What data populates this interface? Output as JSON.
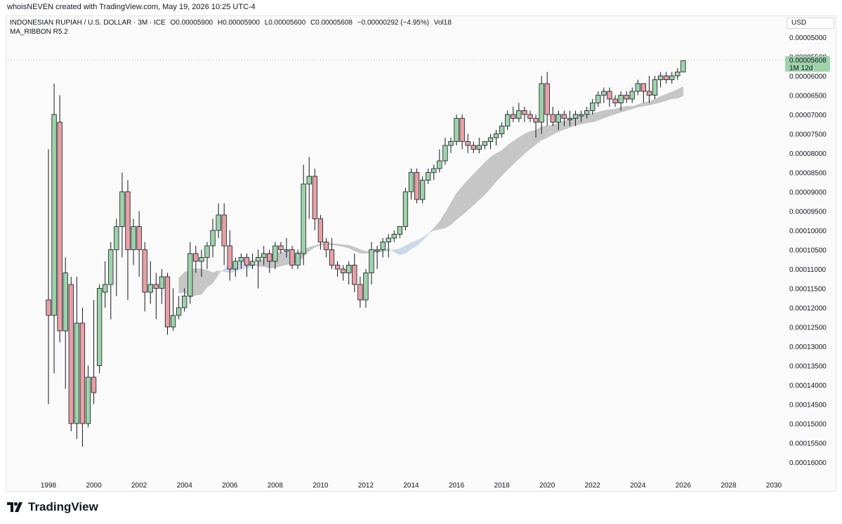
{
  "header": {
    "credit": "whoisNEVEN created with TradingView.com, May 19, 2026 10:25 UTC-4"
  },
  "legend": {
    "symbol": "INDONESIAN RUPIAH / U.S. DOLLAR · 3M · ICE",
    "open": "O0.00005900",
    "high": "H0.00005900",
    "low": "L0.00005600",
    "close": "C0.00005608",
    "change": "−0.00000292 (−4.95%)",
    "volume": "Vol18",
    "indicator": "MA_RIBBON R5.2"
  },
  "currency_badge": "USD",
  "price_tag": {
    "price": "0.00005608",
    "countdown": "1M 12d",
    "color": "#9ed3a9"
  },
  "brand": {
    "name": "TradingView"
  },
  "colors": {
    "up": "#9ed3a9",
    "down": "#e8a0a4",
    "ribbon": "#c6c6c6",
    "ribbon_light": "#c9d9e8",
    "text": "#131722"
  },
  "chart_data": {
    "type": "candlestick",
    "title": "INDONESIAN RUPIAH / U.S. DOLLAR",
    "xlabel": "",
    "ylabel": "",
    "y_scale": "inverted",
    "ylim": [
      0.000162,
      4.8e-05
    ],
    "xlim": [
      1998.0,
      2030.3
    ],
    "x_ticks": [
      "1998",
      "2000",
      "2002",
      "2004",
      "2006",
      "2008",
      "2010",
      "2012",
      "2014",
      "2016",
      "2018",
      "2020",
      "2022",
      "2024",
      "2026",
      "2028",
      "2030"
    ],
    "y_ticks": [
      "0.00005000",
      "0.00005500",
      "0.00006000",
      "0.00006500",
      "0.00007000",
      "0.00007500",
      "0.00008000",
      "0.00008500",
      "0.00009000",
      "0.00009500",
      "0.00010000",
      "0.00010500",
      "0.00011000",
      "0.00011500",
      "0.00012000",
      "0.00012500",
      "0.00013000",
      "0.00013500",
      "0.00014000",
      "0.00014500",
      "0.00015000",
      "0.00015500",
      "0.00016000"
    ],
    "last_price": 5.608e-05,
    "candles_ohlc": [
      [
        0.000118,
        7.9e-05,
        0.000145,
        0.000122
      ],
      [
        0.000122,
        6.2e-05,
        0.000137,
        7e-05
      ],
      [
        7.2e-05,
        6.5e-05,
        0.000129,
        0.000126
      ],
      [
        0.000126,
        0.000107,
        0.000141,
        0.000111
      ],
      [
        0.000114,
        0.000112,
        0.000152,
        0.00015
      ],
      [
        0.00015,
        0.000112,
        0.000154,
        0.000124
      ],
      [
        0.000124,
        0.00012,
        0.000156,
        0.00015
      ],
      [
        0.00015,
        0.000135,
        0.000151,
        0.000138
      ],
      [
        0.000138,
        0.000118,
        0.000145,
        0.000142
      ],
      [
        0.000135,
        0.000114,
        0.000137,
        0.000115
      ],
      [
        0.000116,
        0.000108,
        0.00012,
        0.000114
      ],
      [
        0.000114,
        0.000103,
        0.000123,
        0.000105
      ],
      [
        0.000105,
        9.7e-05,
        0.000117,
        9.9e-05
      ],
      [
        9.9e-05,
        8.5e-05,
        0.000107,
        9e-05
      ],
      [
        9e-05,
        8.7e-05,
        0.000118,
        0.000105
      ],
      [
        0.000105,
        9.7e-05,
        0.000109,
        9.9e-05
      ],
      [
        9.9e-05,
        9.5e-05,
        0.000112,
        0.000105
      ],
      [
        0.000105,
        0.000103,
        0.000121,
        0.000116
      ],
      [
        0.000116,
        0.000108,
        0.000119,
        0.000114
      ],
      [
        0.000114,
        0.000111,
        0.000123,
        0.000115
      ],
      [
        0.000115,
        0.00011,
        0.000119,
        0.000112
      ],
      [
        0.000112,
        0.000111,
        0.000127,
        0.000125
      ],
      [
        0.000125,
        0.000115,
        0.000126,
        0.000122
      ],
      [
        0.000122,
        0.000117,
        0.000123,
        0.00012
      ],
      [
        0.00012,
        0.000115,
        0.000121,
        0.000117
      ],
      [
        0.000117,
        0.000103,
        0.000119,
        0.000106
      ],
      [
        0.000106,
        0.000104,
        0.000111,
        0.000108
      ],
      [
        0.000108,
        0.000105,
        0.000112,
        0.000107
      ],
      [
        0.000107,
        0.000103,
        0.00011,
        0.000104
      ],
      [
        0.000104,
        9.7e-05,
        0.000107,
        0.0001
      ],
      [
        0.0001,
        9.3e-05,
        0.000102,
        9.6e-05
      ],
      [
        9.6e-05,
        9.3e-05,
        0.000109,
        0.000104
      ],
      [
        0.000104,
        0.0001,
        0.000113,
        0.00011
      ],
      [
        0.00011,
        0.000107,
        0.000112,
        0.000108
      ],
      [
        0.000108,
        0.000106,
        0.00011,
        0.000107
      ],
      [
        0.000107,
        0.000106,
        0.000112,
        0.000109
      ],
      [
        0.000109,
        0.000106,
        0.00011,
        0.000108
      ],
      [
        0.000108,
        0.000105,
        0.000115,
        0.000107
      ],
      [
        0.000107,
        0.000104,
        0.000109,
        0.000106
      ],
      [
        0.000106,
        0.000105,
        0.000111,
        0.000108
      ],
      [
        0.000108,
        0.000103,
        0.00011,
        0.000104
      ],
      [
        0.000104,
        0.000103,
        0.000106,
        0.000105
      ],
      [
        0.000105,
        0.000102,
        0.000107,
        0.000105
      ],
      [
        0.000105,
        0.000104,
        0.00011,
        0.000109
      ],
      [
        0.000109,
        0.000105,
        0.00011,
        0.000106
      ],
      [
        0.000106,
        8.3e-05,
        0.000109,
        8.8e-05
      ],
      [
        8.8e-05,
        8.1e-05,
        9.7e-05,
        8.6e-05
      ],
      [
        8.6e-05,
        8.4e-05,
        0.0001,
        9.7e-05
      ],
      [
        9.7e-05,
        9.6e-05,
        0.000105,
        0.000103
      ],
      [
        0.000103,
        0.000102,
        0.000107,
        0.000105
      ],
      [
        0.000105,
        0.000102,
        0.00011,
        0.000109
      ],
      [
        0.000109,
        0.000108,
        0.000112,
        0.00011
      ],
      [
        0.00011,
        0.000109,
        0.000113,
        0.000111
      ],
      [
        0.000111,
        0.000108,
        0.000114,
        0.000109
      ],
      [
        0.000109,
        0.000106,
        0.000116,
        0.000114
      ],
      [
        0.000114,
        0.000112,
        0.00012,
        0.000118
      ],
      [
        0.000118,
        0.00011,
        0.00012,
        0.000111
      ],
      [
        0.000111,
        0.000103,
        0.000114,
        0.000105
      ],
      [
        0.000105,
        0.000104,
        0.00011,
        0.000105
      ],
      [
        0.000105,
        0.000102,
        0.000107,
        0.000103
      ],
      [
        0.000103,
        0.000101,
        0.000107,
        0.000102
      ],
      [
        0.000102,
        0.0001,
        0.000103,
        0.000101
      ],
      [
        0.000101,
        9.9e-05,
        0.000102,
        9.9e-05
      ],
      [
        9.9e-05,
        8.9e-05,
        0.0001,
        9e-05
      ],
      [
        9e-05,
        8.4e-05,
        9.2e-05,
        8.5e-05
      ],
      [
        8.5e-05,
        8.4e-05,
        9.3e-05,
        9.2e-05
      ],
      [
        9.2e-05,
        8.6e-05,
        9.3e-05,
        8.7e-05
      ],
      [
        8.7e-05,
        8.4e-05,
        8.8e-05,
        8.5e-05
      ],
      [
        8.5e-05,
        8.3e-05,
        8.7e-05,
        8.4e-05
      ],
      [
        8.4e-05,
        7.9e-05,
        8.5e-05,
        8.2e-05
      ],
      [
        8.2e-05,
        7.6e-05,
        8.3e-05,
        7.8e-05
      ],
      [
        7.8e-05,
        7.6e-05,
        8e-05,
        7.7e-05
      ],
      [
        7.7e-05,
        7e-05,
        7.8e-05,
        7.1e-05
      ],
      [
        7.1e-05,
        7e-05,
        7.9e-05,
        7.7e-05
      ],
      [
        7.7e-05,
        7.5e-05,
        8e-05,
        7.8e-05
      ],
      [
        7.8e-05,
        7.7e-05,
        8e-05,
        7.9e-05
      ],
      [
        7.9e-05,
        7.6e-05,
        8e-05,
        7.8e-05
      ],
      [
        7.8e-05,
        7.7e-05,
        7.9e-05,
        7.7e-05
      ],
      [
        7.7e-05,
        7.5e-05,
        7.9e-05,
        7.6e-05
      ],
      [
        7.6e-05,
        7.4e-05,
        7.8e-05,
        7.5e-05
      ],
      [
        7.5e-05,
        7.2e-05,
        7.6e-05,
        7.3e-05
      ],
      [
        7.3e-05,
        6.9e-05,
        7.4e-05,
        7e-05
      ],
      [
        7e-05,
        6.8e-05,
        7.2e-05,
        7.1e-05
      ],
      [
        7.1e-05,
        6.7e-05,
        7.2e-05,
        6.9e-05
      ],
      [
        6.9e-05,
        6.8e-05,
        7.2e-05,
        7e-05
      ],
      [
        7e-05,
        6.9e-05,
        7.2e-05,
        7.1e-05
      ],
      [
        7.1e-05,
        7e-05,
        7.6e-05,
        7.2e-05
      ],
      [
        7.2e-05,
        6e-05,
        7.5e-05,
        6.2e-05
      ],
      [
        6.2e-05,
        5.9e-05,
        7.3e-05,
        7e-05
      ],
      [
        7e-05,
        6.8e-05,
        7.3e-05,
        7.2e-05
      ],
      [
        7.2e-05,
        6.9e-05,
        7.4e-05,
        7e-05
      ],
      [
        7e-05,
        6.9e-05,
        7.3e-05,
        7.1e-05
      ],
      [
        7.1e-05,
        6.9e-05,
        7.3e-05,
        7.1e-05
      ],
      [
        7.1e-05,
        6.9e-05,
        7.3e-05,
        7e-05
      ],
      [
        7e-05,
        6.9e-05,
        7.2e-05,
        7e-05
      ],
      [
        7e-05,
        6.8e-05,
        7.1e-05,
        6.9e-05
      ],
      [
        6.9e-05,
        6.6e-05,
        7e-05,
        6.7e-05
      ],
      [
        6.7e-05,
        6.4e-05,
        6.8e-05,
        6.5e-05
      ],
      [
        6.5e-05,
        6.3e-05,
        6.7e-05,
        6.4e-05
      ],
      [
        6.4e-05,
        6.3e-05,
        6.8e-05,
        6.6e-05
      ],
      [
        6.6e-05,
        6.5e-05,
        6.8e-05,
        6.7e-05
      ],
      [
        6.7e-05,
        6.4e-05,
        6.9e-05,
        6.5e-05
      ],
      [
        6.5e-05,
        6.4e-05,
        6.7e-05,
        6.6e-05
      ],
      [
        6.6e-05,
        6.3e-05,
        6.7e-05,
        6.4e-05
      ],
      [
        6.4e-05,
        6.1e-05,
        6.5e-05,
        6.2e-05
      ],
      [
        6.2e-05,
        6.2e-05,
        6.7e-05,
        6.4e-05
      ],
      [
        6.4e-05,
        6e-05,
        6.7e-05,
        6.5e-05
      ],
      [
        6.5e-05,
        6e-05,
        6.6e-05,
        6.1e-05
      ],
      [
        6.1e-05,
        5.9e-05,
        6.3e-05,
        6e-05
      ],
      [
        6e-05,
        5.9e-05,
        6.2e-05,
        6.1e-05
      ],
      [
        6.1e-05,
        5.9e-05,
        6.2e-05,
        6e-05
      ],
      [
        6e-05,
        5.8e-05,
        6.1e-05,
        5.9e-05
      ],
      [
        5.9e-05,
        5.6e-05,
        5.9e-05,
        5.61e-05
      ]
    ]
  }
}
